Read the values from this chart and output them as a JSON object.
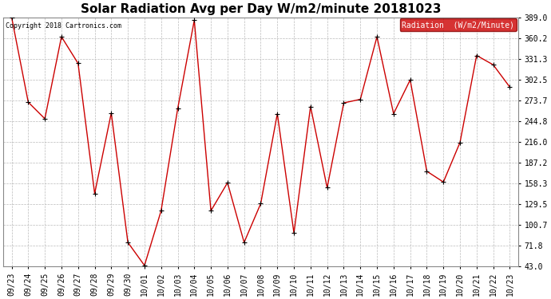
{
  "title": "Solar Radiation Avg per Day W/m2/minute 20181023",
  "copyright": "Copyright 2018 Cartronics.com",
  "legend_label": "Radiation  (W/m2/Minute)",
  "legend_bg": "#cc0000",
  "legend_fg": "#ffffff",
  "x_labels": [
    "09/23",
    "09/24",
    "09/25",
    "09/26",
    "09/27",
    "09/28",
    "09/29",
    "09/30",
    "10/01",
    "10/02",
    "10/03",
    "10/04",
    "10/05",
    "10/06",
    "10/07",
    "10/08",
    "10/09",
    "10/10",
    "10/11",
    "10/12",
    "10/13",
    "10/14",
    "10/15",
    "10/16",
    "10/17",
    "10/18",
    "10/19",
    "10/20",
    "10/21",
    "10/22",
    "10/23"
  ],
  "y_values": [
    389.0,
    271.0,
    248.0,
    362.0,
    325.0,
    144.0,
    256.0,
    76.0,
    44.0,
    120.0,
    262.0,
    385.0,
    120.0,
    159.0,
    76.0,
    130.0,
    255.0,
    89.0,
    265.0,
    152.0,
    270.0,
    275.0,
    362.0,
    255.0,
    302.0,
    175.0,
    160.0,
    215.0,
    336.0,
    323.0,
    292.0
  ],
  "y_ticks": [
    43.0,
    71.8,
    100.7,
    129.5,
    158.3,
    187.2,
    216.0,
    244.8,
    273.7,
    302.5,
    331.3,
    360.2,
    389.0
  ],
  "y_tick_labels": [
    "43.0",
    "71.8",
    "100.7",
    "129.5",
    "158.3",
    "187.2",
    "216.0",
    "244.8",
    "273.7",
    "302.5",
    "331.3",
    "360.2",
    "389.0"
  ],
  "ylim": [
    43.0,
    389.0
  ],
  "line_color": "#cc0000",
  "marker_color": "#000000",
  "bg_color": "#ffffff",
  "plot_bg": "#ffffff",
  "grid_color": "#bbbbbb",
  "title_fontsize": 11,
  "axis_fontsize": 7
}
